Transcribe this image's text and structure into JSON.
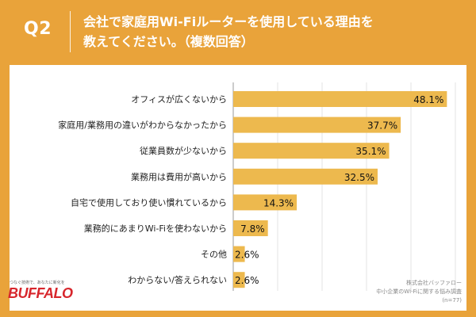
{
  "header": {
    "question_no": "Q2",
    "question_line1": "会社で家庭用Wi-Fiルーターを使用している理由を",
    "question_line2": "教えてください。（複数回答）"
  },
  "chart_data": {
    "type": "bar",
    "orientation": "horizontal",
    "categories": [
      "オフィスが広くないから",
      "家庭用/業務用の違いがわからなかったから",
      "従業員数が少ないから",
      "業務用は費用が高いから",
      "自宅で使用しており使い慣れているから",
      "業務的にあまりWi-Fiを使わないから",
      "その他",
      "わからない/答えられない"
    ],
    "values": [
      48.1,
      37.7,
      35.1,
      32.5,
      14.3,
      7.8,
      2.6,
      2.6
    ],
    "value_labels": [
      "48.1%",
      "37.7%",
      "35.1%",
      "32.5%",
      "14.3%",
      "7.8%",
      "2.6%",
      "2.6%"
    ],
    "xlim": [
      0,
      50
    ],
    "grid": true,
    "bar_color": "#EDB94E"
  },
  "footer": {
    "tagline": "つなぐ技術で、あなたに新化を",
    "logo_text": "BUFFALO",
    "source_line1": "株式会社バッファロー",
    "source_line2": "中小企業のWi-Fiに関する悩み調査",
    "source_line3": "(n=77)"
  },
  "colors": {
    "background": "#E9A33A",
    "card": "#FFFFFF",
    "bar": "#EDB94E",
    "logo": "#D7262C"
  }
}
